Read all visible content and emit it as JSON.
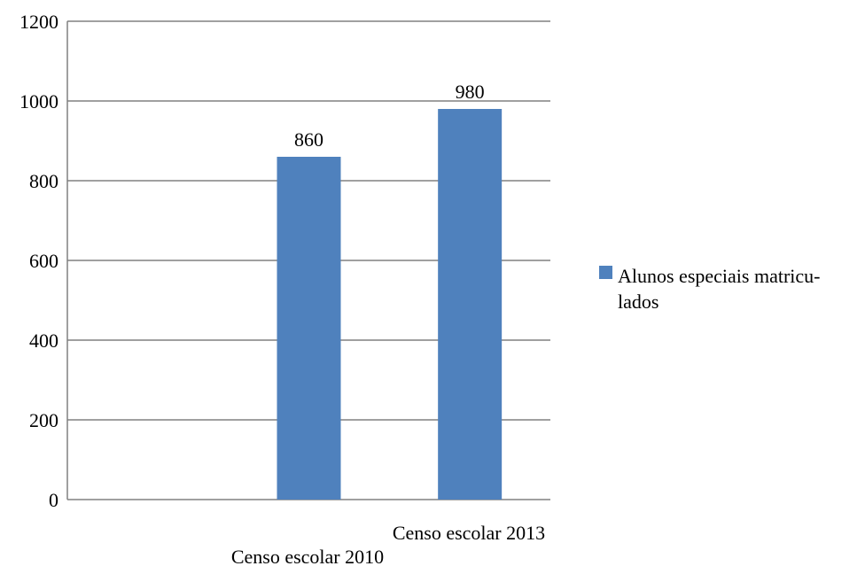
{
  "chart_data": {
    "type": "bar",
    "categories": [
      "",
      "Censo escolar 2010",
      "Censo escolar 2013"
    ],
    "series": [
      {
        "name": "Alunos especiais matricu-lados",
        "legend_lines": [
          "Alunos especiais matricu-",
          "lados"
        ],
        "values": [
          null,
          860,
          980
        ],
        "color": "#4f81bd"
      }
    ],
    "data_labels": [
      "",
      "860",
      "980"
    ],
    "yticks": [
      "0",
      "200",
      "400",
      "600",
      "800",
      "1000",
      "1200"
    ],
    "ylim": [
      0,
      1200
    ],
    "grid": true,
    "legend_position": "right",
    "title": "",
    "xlabel": "",
    "ylabel": ""
  }
}
